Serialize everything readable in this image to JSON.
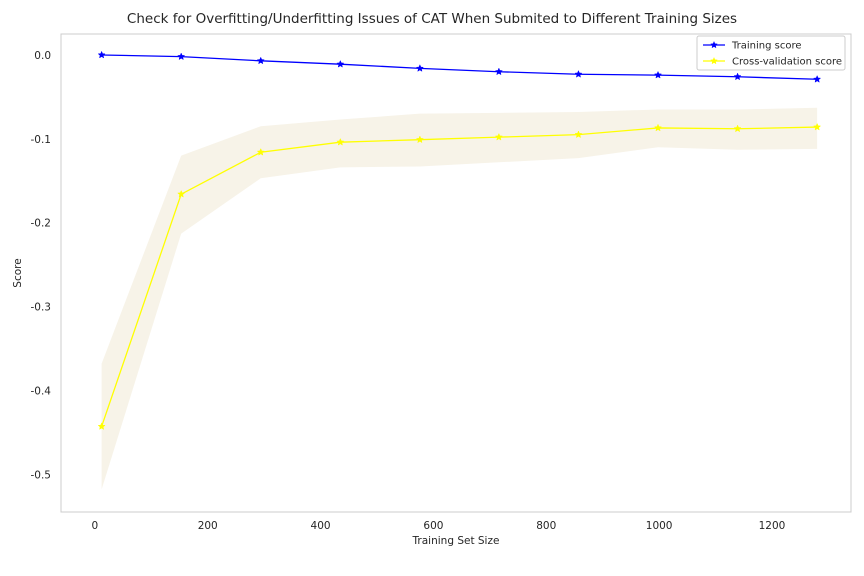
{
  "chart_data": {
    "type": "line",
    "title": "Check for Overfitting/Underfitting Issues of CAT When Submited to Different Training Sizes",
    "xlabel": "Training Set Size",
    "ylabel": "Score",
    "xlim": [
      -60,
      1340
    ],
    "ylim": [
      -0.545,
      0.025
    ],
    "xticks": [
      0,
      200,
      400,
      600,
      800,
      1000,
      1200
    ],
    "yticks": [
      0.0,
      -0.1,
      -0.2,
      -0.3,
      -0.4,
      -0.5
    ],
    "ytick_labels": [
      "0.0",
      "-0.1",
      "-0.2",
      "-0.3",
      "-0.4",
      "-0.5"
    ],
    "grid": false,
    "legend": "top-right",
    "x": [
      12,
      153,
      294,
      435,
      576,
      716,
      857,
      998,
      1139,
      1280
    ],
    "series": [
      {
        "name": "Training score",
        "color": "#0000ff",
        "marker": "star",
        "values": [
          0.0,
          -0.002,
          -0.007,
          -0.011,
          -0.016,
          -0.02,
          -0.023,
          -0.024,
          -0.026,
          -0.029
        ]
      },
      {
        "name": "Cross-validation score",
        "color": "#ffff00",
        "marker": "star",
        "values": [
          -0.443,
          -0.166,
          -0.116,
          -0.104,
          -0.101,
          -0.098,
          -0.095,
          -0.087,
          -0.088,
          -0.086
        ],
        "band_upper": [
          -0.368,
          -0.12,
          -0.085,
          -0.077,
          -0.07,
          -0.069,
          -0.068,
          -0.065,
          -0.065,
          -0.063
        ],
        "band_lower": [
          -0.518,
          -0.213,
          -0.147,
          -0.134,
          -0.133,
          -0.128,
          -0.123,
          -0.11,
          -0.113,
          -0.112
        ],
        "band_color": "#f7f3e8"
      }
    ]
  }
}
